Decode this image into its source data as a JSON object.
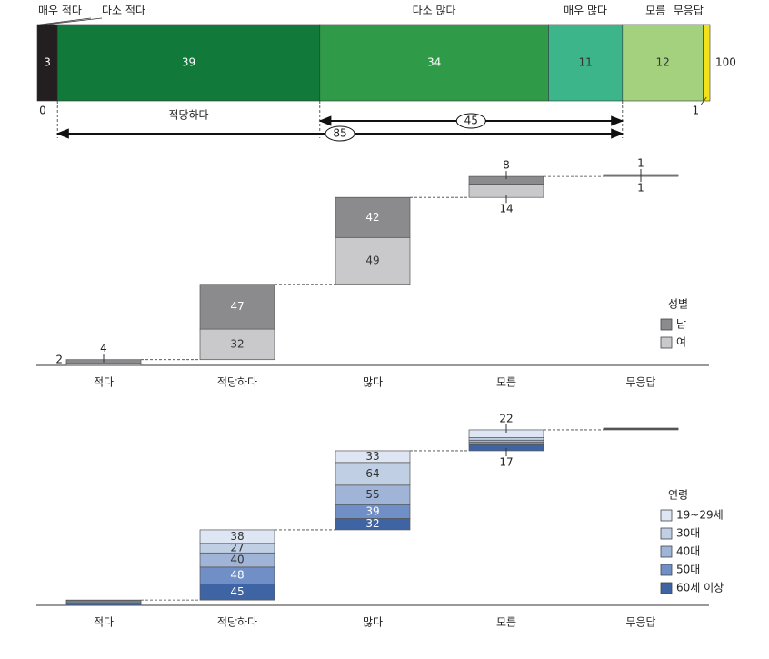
{
  "chart_data": [
    {
      "type": "stacked-bar",
      "categories": [
        "매우 적다",
        "다소 적다",
        "적당하다",
        "다소 많다",
        "매우 많다",
        "모름",
        "무응답"
      ],
      "values": [
        0,
        3,
        39,
        34,
        11,
        12,
        1
      ],
      "colors": [
        "#231f20",
        "#231f20",
        "#117a3b",
        "#2f9b48",
        "#3db58b",
        "#a3d17e",
        "#f3e219"
      ],
      "total": 100,
      "brackets": [
        45,
        85
      ]
    },
    {
      "type": "waterfall",
      "categories": [
        "적다",
        "적당하다",
        "많다",
        "모름",
        "무응답"
      ],
      "legend_title": "성별",
      "series": [
        {
          "name": "남",
          "color": "#8b8b8d",
          "values": [
            4,
            47,
            42,
            8,
            1
          ]
        },
        {
          "name": "여",
          "color": "#c9c9cb",
          "values": [
            2,
            32,
            49,
            14,
            1
          ]
        }
      ]
    },
    {
      "type": "waterfall",
      "categories": [
        "적다",
        "적당하다",
        "많다",
        "모름",
        "무응답"
      ],
      "legend_title": "연령",
      "series": [
        {
          "name": "19~29세",
          "color": "#dde6f2",
          "values": [
            2,
            38,
            33,
            22,
            1
          ],
          "value_labels": [
            null,
            "38",
            "33",
            "22",
            null
          ]
        },
        {
          "name": "30대",
          "color": "#c0cfe4",
          "values": [
            3,
            27,
            64,
            7,
            1
          ],
          "value_labels": [
            null,
            "27",
            "64",
            null,
            null
          ]
        },
        {
          "name": "40대",
          "color": "#9fb4d6",
          "values": [
            3,
            40,
            55,
            6,
            1
          ],
          "value_labels": [
            null,
            "40",
            "55",
            null,
            null
          ]
        },
        {
          "name": "50대",
          "color": "#6f8fc6",
          "values": [
            3,
            48,
            39,
            7,
            1
          ],
          "value_labels": [
            null,
            "48",
            "39",
            null,
            null
          ]
        },
        {
          "name": "60세 이상",
          "color": "#3f64a3",
          "values": [
            4,
            45,
            32,
            17,
            1
          ],
          "value_labels": [
            null,
            "45",
            "32",
            "17",
            null
          ]
        }
      ]
    }
  ]
}
